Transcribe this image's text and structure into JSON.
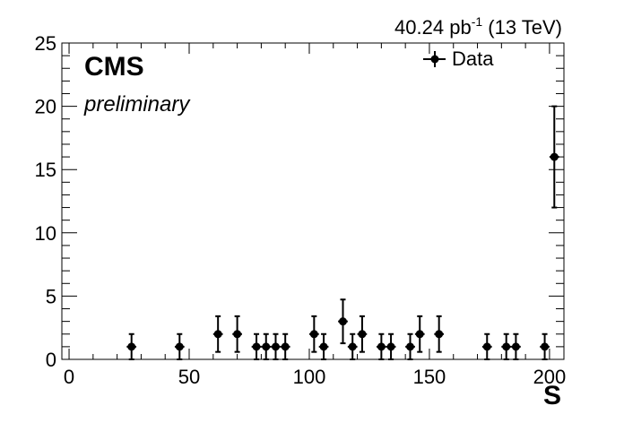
{
  "chart_data": {
    "type": "scatter",
    "lumi_value": "40.24 pb",
    "lumi_exp": "-1",
    "energy": " (13 TeV)",
    "experiment": "CMS",
    "status": "preliminary",
    "xlabel": "S",
    "ylabel": "",
    "xlim": [
      -3,
      206
    ],
    "ylim": [
      0,
      25
    ],
    "x_ticks": [
      0,
      50,
      100,
      150,
      200
    ],
    "y_ticks": [
      0,
      5,
      10,
      15,
      20,
      25
    ],
    "series": [
      {
        "name": "Data",
        "marker": "circle",
        "color": "#000000",
        "points": [
          {
            "x": 26,
            "y": 1,
            "err": 1.0
          },
          {
            "x": 46,
            "y": 1,
            "err": 1.0
          },
          {
            "x": 62,
            "y": 2,
            "err": 1.41
          },
          {
            "x": 70,
            "y": 2,
            "err": 1.41
          },
          {
            "x": 78,
            "y": 1,
            "err": 1.0
          },
          {
            "x": 82,
            "y": 1,
            "err": 1.0
          },
          {
            "x": 86,
            "y": 1,
            "err": 1.0
          },
          {
            "x": 90,
            "y": 1,
            "err": 1.0
          },
          {
            "x": 102,
            "y": 2,
            "err": 1.41
          },
          {
            "x": 106,
            "y": 1,
            "err": 1.0
          },
          {
            "x": 114,
            "y": 3,
            "err": 1.73
          },
          {
            "x": 118,
            "y": 1,
            "err": 1.0
          },
          {
            "x": 122,
            "y": 2,
            "err": 1.41
          },
          {
            "x": 130,
            "y": 1,
            "err": 1.0
          },
          {
            "x": 134,
            "y": 1,
            "err": 1.0
          },
          {
            "x": 142,
            "y": 1,
            "err": 1.0
          },
          {
            "x": 146,
            "y": 2,
            "err": 1.41
          },
          {
            "x": 154,
            "y": 2,
            "err": 1.41
          },
          {
            "x": 174,
            "y": 1,
            "err": 1.0
          },
          {
            "x": 182,
            "y": 1,
            "err": 1.0
          },
          {
            "x": 186,
            "y": 1,
            "err": 1.0
          },
          {
            "x": 198,
            "y": 1,
            "err": 1.0
          },
          {
            "x": 202,
            "y": 16,
            "err": 4.0
          }
        ]
      }
    ],
    "legend_position": "top-right",
    "grid": false
  }
}
